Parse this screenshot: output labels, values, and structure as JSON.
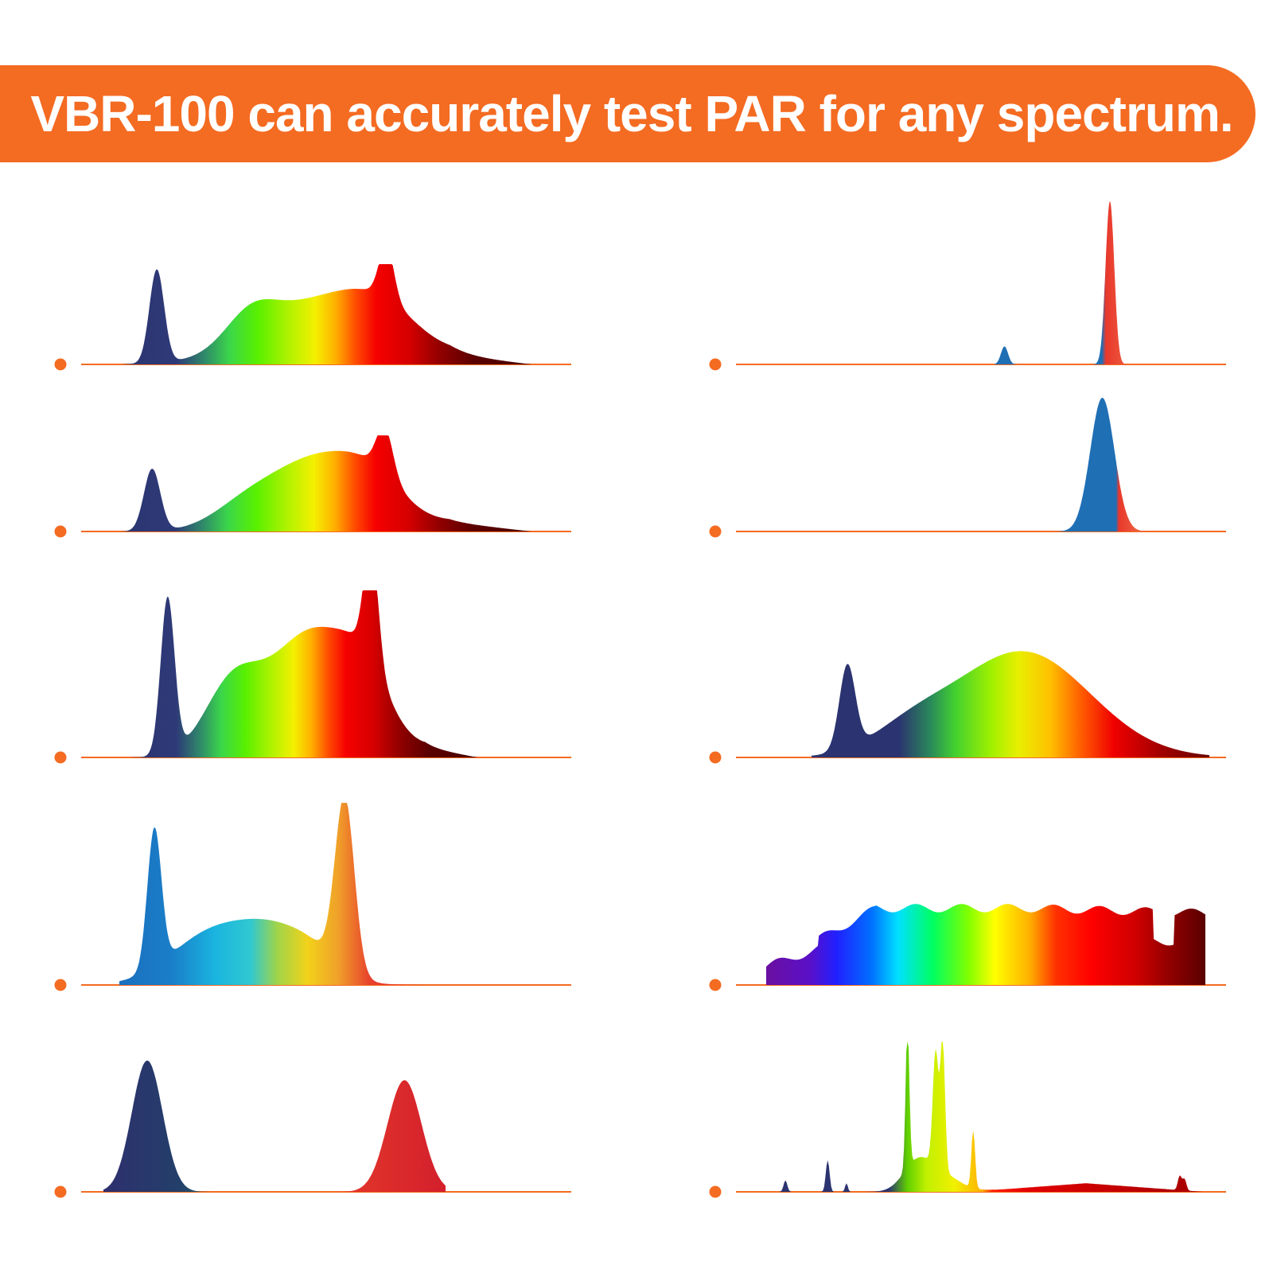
{
  "banner": {
    "title": "VBR-100 can accurately test PAR for any spectrum.",
    "background_color": "#f46b22",
    "text_color": "#ffffff"
  },
  "colors": {
    "baseline": "#f46b22",
    "bullet": "#f46b22"
  },
  "spectra": [
    {
      "id": "full-spectrum-1",
      "column": "left",
      "row": 1,
      "style": "broad-dark-red"
    },
    {
      "id": "full-spectrum-2",
      "column": "left",
      "row": 2,
      "style": "broad-dark-red"
    },
    {
      "id": "full-spectrum-3",
      "column": "left",
      "row": 3,
      "style": "broad-dark-red"
    },
    {
      "id": "blue-plus-red-broad",
      "column": "left",
      "row": 4,
      "style": "bright-blue-red"
    },
    {
      "id": "blue-and-red-peaks",
      "column": "left",
      "row": 5,
      "style": "two-peaks"
    },
    {
      "id": "red-with-small-blue",
      "column": "right",
      "row": 1,
      "style": "red-peak"
    },
    {
      "id": "red-only",
      "column": "right",
      "row": 2,
      "style": "red-peak"
    },
    {
      "id": "white-led",
      "column": "right",
      "row": 3,
      "style": "white-led"
    },
    {
      "id": "sunlight",
      "column": "right",
      "row": 4,
      "style": "rainbow"
    },
    {
      "id": "hps-lamp",
      "column": "right",
      "row": 5,
      "style": "hps"
    }
  ]
}
